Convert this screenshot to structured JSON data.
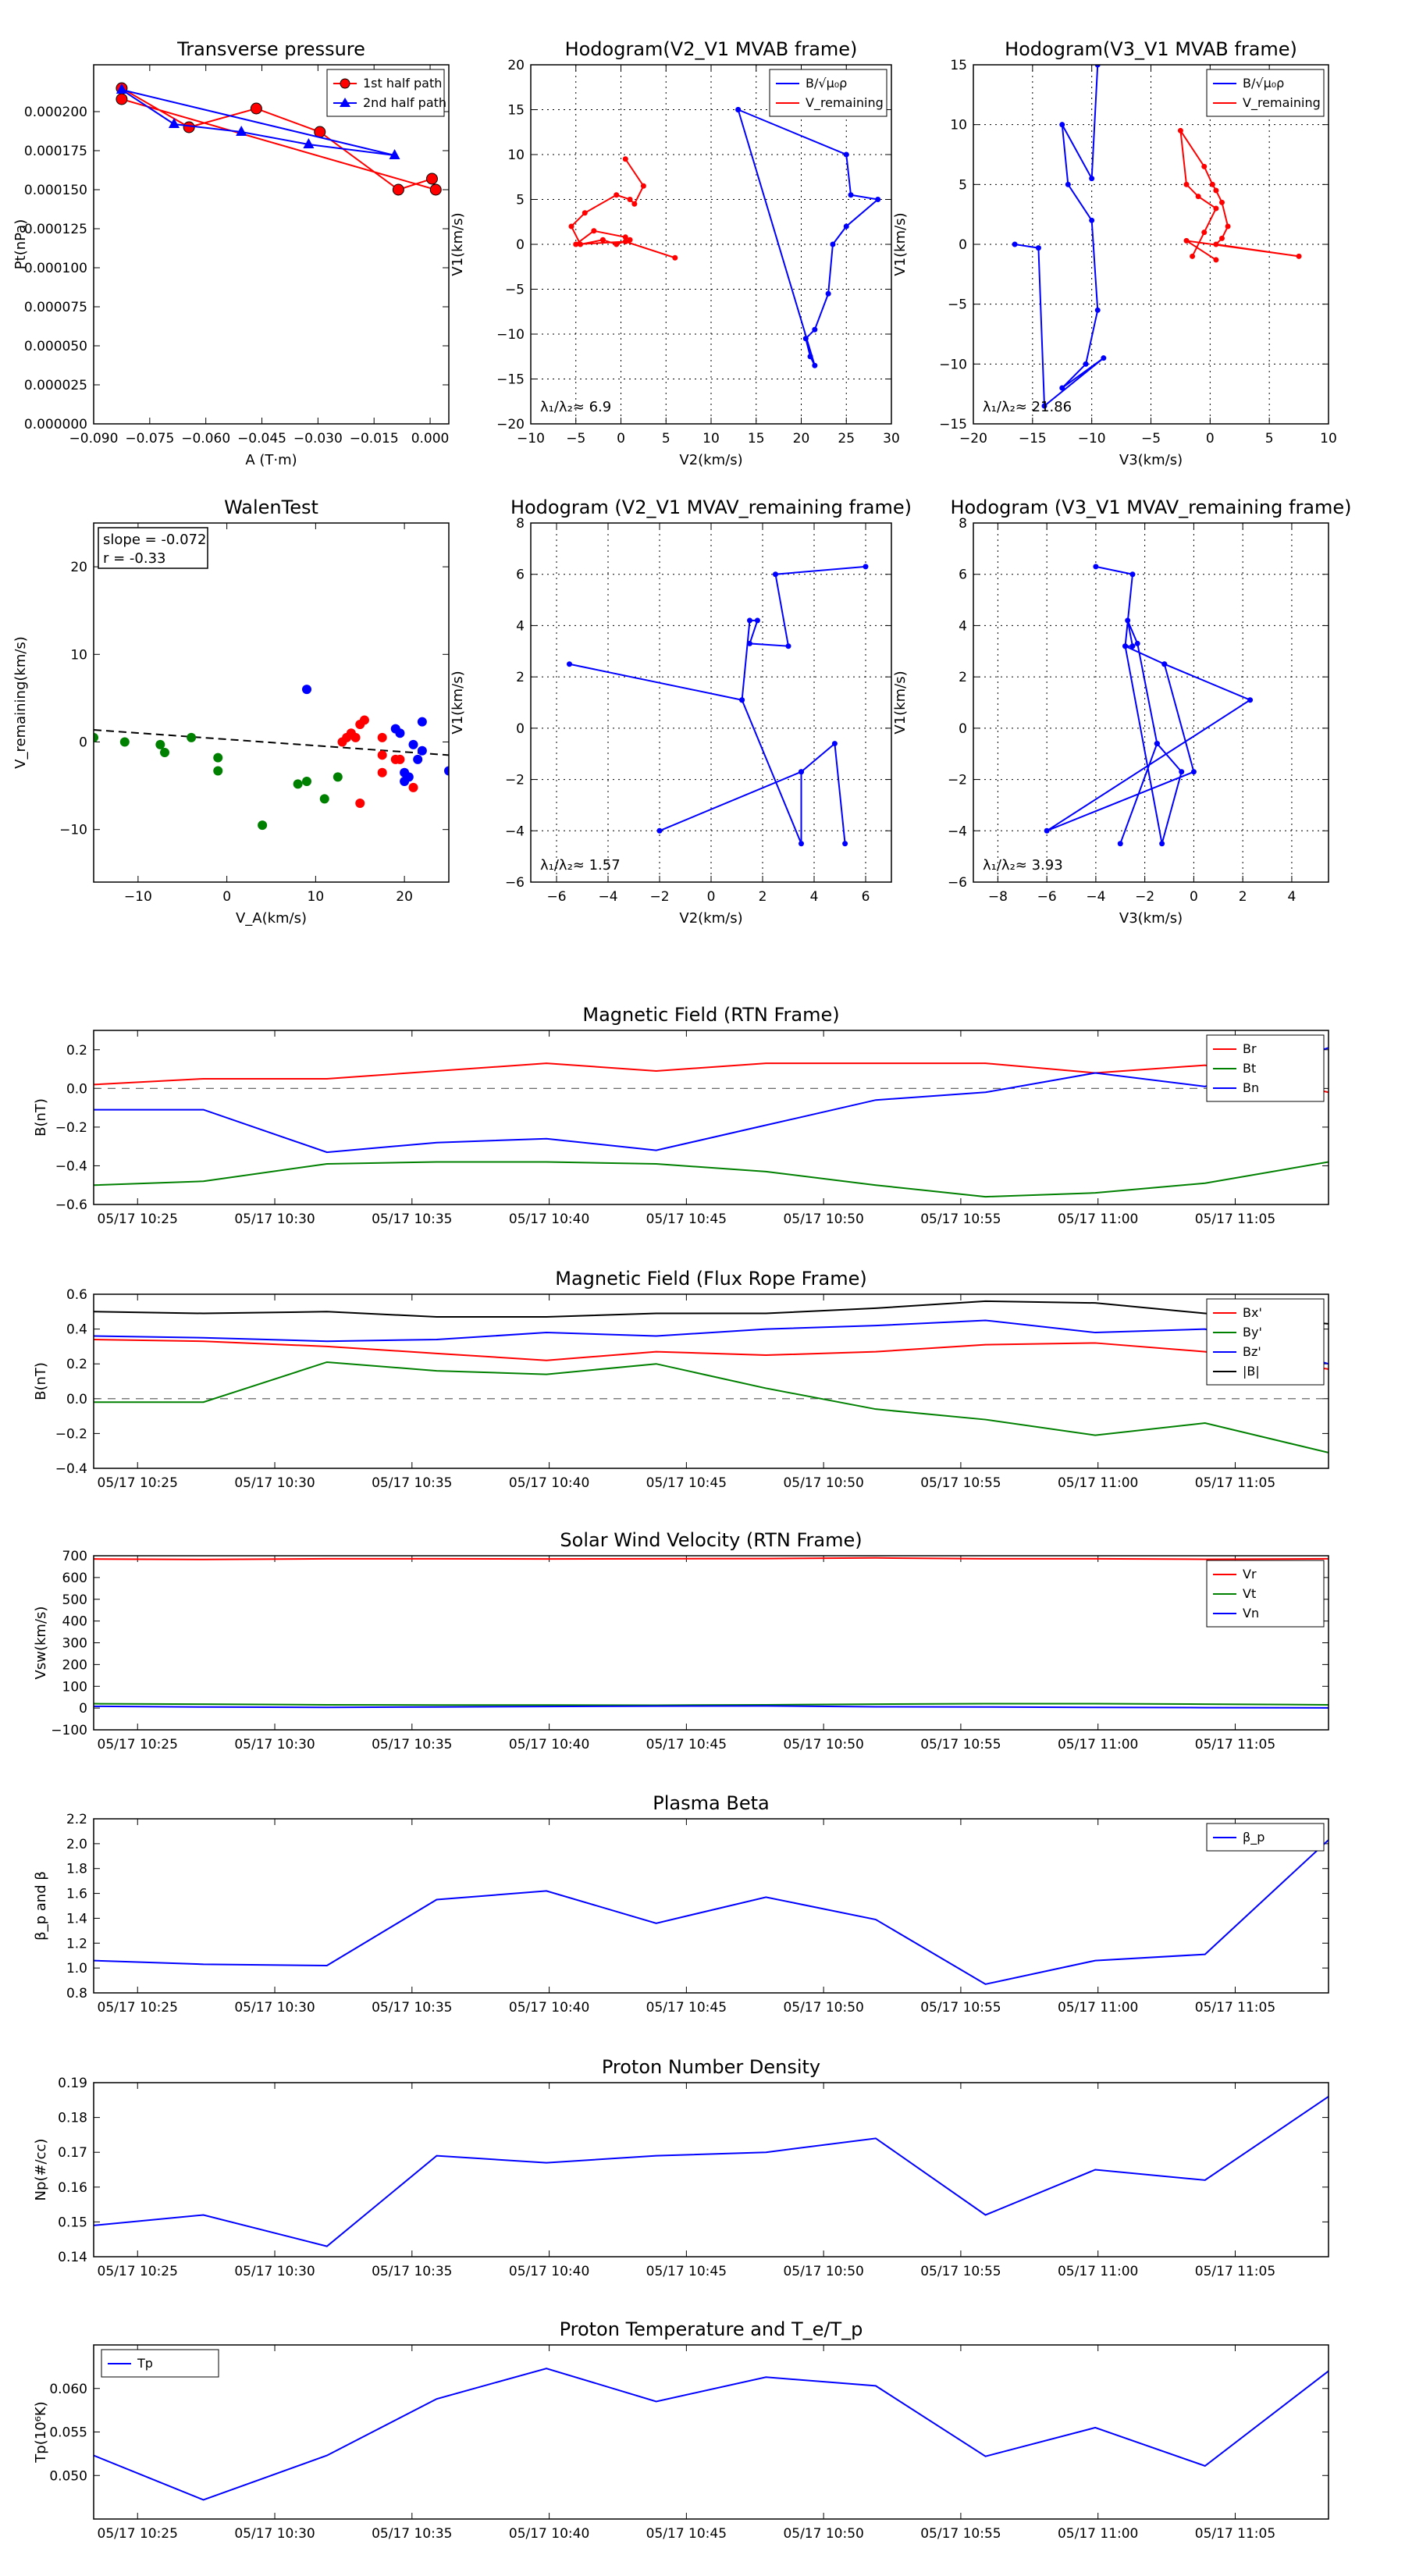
{
  "chart_data": [
    {
      "id": "tp",
      "type": "scatter",
      "title": "Transverse pressure",
      "xlabel": "A (T·m)",
      "ylabel": "Pt(nPa)",
      "xlim": [
        -0.09,
        0.005
      ],
      "ylim": [
        0,
        0.00023
      ],
      "xticks": [
        -0.09,
        -0.075,
        -0.06,
        -0.045,
        -0.03,
        -0.015,
        0
      ],
      "xtick_labels": [
        "−0.090",
        "−0.075",
        "−0.060",
        "−0.045",
        "−0.030",
        "−0.015",
        "0.000"
      ],
      "yticks": [
        0,
        2.5e-05,
        5e-05,
        7.5e-05,
        0.0001,
        0.000125,
        0.00015,
        0.000175,
        0.0002
      ],
      "ytick_labels": [
        "0.000000",
        "0.000025",
        "0.000050",
        "0.000075",
        "0.000100",
        "0.000125",
        "0.000150",
        "0.000175",
        "0.000200"
      ],
      "grid": false,
      "legend": "top-right",
      "series": [
        {
          "name": "1st half path",
          "color": "#ff0000",
          "marker": "circle",
          "x": [
            -0.0825,
            -0.0645,
            -0.0465,
            -0.0295,
            -0.0085,
            0.0005,
            0.0015,
            -0.0825
          ],
          "y": [
            0.000215,
            0.00019,
            0.000202,
            0.000187,
            0.00015,
            0.000157,
            0.00015,
            0.000208
          ]
        },
        {
          "name": "2nd half path",
          "color": "#0000ff",
          "marker": "triangle",
          "x": [
            -0.0825,
            -0.0685,
            -0.0505,
            -0.0325,
            -0.0095,
            -0.0825
          ],
          "y": [
            0.000214,
            0.000192,
            0.000187,
            0.000179,
            0.000172,
            0.000214
          ]
        }
      ]
    },
    {
      "id": "h1",
      "type": "line",
      "title": "Hodogram(V2_V1 MVAB frame)",
      "xlabel": "V2(km/s)",
      "ylabel": "V1(km/s)",
      "xlim": [
        -10,
        30
      ],
      "ylim": [
        -20,
        20
      ],
      "xticks": [
        -10,
        -5,
        0,
        5,
        10,
        15,
        20,
        25,
        30
      ],
      "yticks": [
        -20,
        -15,
        -10,
        -5,
        0,
        5,
        10,
        15,
        20
      ],
      "grid": true,
      "legend": "top-right",
      "annotation": "λ₁/λ₂≈ 6.9",
      "series": [
        {
          "name": "B/√μ₀ρ",
          "color": "#0000ff",
          "x": [
            13,
            25,
            25.5,
            28.5,
            25,
            23.5,
            23,
            21.5,
            20.5,
            21,
            21.5,
            13
          ],
          "y": [
            15,
            10,
            5.5,
            5,
            2,
            0,
            -5.5,
            -9.5,
            -10.5,
            -12.5,
            -13.5,
            15
          ]
        },
        {
          "name": "V_remaining",
          "color": "#ff0000",
          "x": [
            0.5,
            2.5,
            1.5,
            1,
            -0.5,
            -4,
            -5.5,
            -4.5,
            -2,
            -0.5,
            1,
            0.5,
            -3,
            -5,
            0.5,
            6
          ],
          "y": [
            9.5,
            6.5,
            4.5,
            5,
            5.5,
            3.5,
            2,
            0,
            0.5,
            0,
            0.5,
            0.8,
            1.5,
            0,
            0.3,
            -1.5
          ]
        }
      ]
    },
    {
      "id": "h2",
      "type": "line",
      "title": "Hodogram(V3_V1 MVAB frame)",
      "xlabel": "V3(km/s)",
      "ylabel": "V1(km/s)",
      "xlim": [
        -20,
        10
      ],
      "ylim": [
        -15,
        15
      ],
      "xticks": [
        -20,
        -15,
        -10,
        -5,
        0,
        5,
        10
      ],
      "yticks": [
        -15,
        -10,
        -5,
        0,
        5,
        10,
        15
      ],
      "grid": true,
      "legend": "top-right",
      "annotation": "λ₁/λ₂≈ 21.86",
      "series": [
        {
          "name": "B/√μ₀ρ",
          "color": "#0000ff",
          "x": [
            -9.5,
            -10,
            -12.5,
            -12,
            -10,
            -9.5,
            -10.5,
            -12.5,
            -9,
            -14,
            -14.5,
            -16.5
          ],
          "y": [
            15,
            5.5,
            10,
            5,
            2,
            -5.5,
            -10,
            -12,
            -9.5,
            -13.5,
            -0.3,
            0
          ]
        },
        {
          "name": "V_remaining",
          "color": "#ff0000",
          "x": [
            -1.5,
            -0.5,
            0.5,
            -1,
            -2,
            -2.5,
            -0.5,
            0.2,
            0.5,
            1,
            1.5,
            1,
            0.5,
            7.5,
            -2,
            0.5
          ],
          "y": [
            -1,
            1,
            3,
            4,
            5,
            9.5,
            6.5,
            5,
            4.5,
            3.5,
            1.5,
            0.5,
            0,
            -1,
            0.3,
            -1.3
          ]
        }
      ]
    },
    {
      "id": "walen",
      "type": "scatter",
      "title": "WalenTest",
      "xlabel": "V_A(km/s)",
      "ylabel": "V_remaining(km/s)",
      "xlim": [
        -15,
        25
      ],
      "ylim": [
        -16,
        25
      ],
      "xticks": [
        -10,
        0,
        10,
        20
      ],
      "yticks": [
        -10,
        0,
        10,
        20
      ],
      "grid": false,
      "annotation": [
        "slope = -0.072",
        "r = -0.33"
      ],
      "fit_line": {
        "slope": -0.072,
        "intercept": 0.3,
        "color": "#000000",
        "style": "dashed"
      },
      "series": [
        {
          "name": "green",
          "color": "#008000",
          "x": [
            -15,
            -11.5,
            -7.5,
            -7,
            -4,
            -1,
            -1,
            4,
            8,
            9,
            11,
            12.5
          ],
          "y": [
            0.5,
            0,
            -0.3,
            -1.2,
            0.5,
            -1.8,
            -3.3,
            -9.5,
            -4.8,
            -4.5,
            -6.5,
            -4
          ]
        },
        {
          "name": "red",
          "color": "#ff0000",
          "x": [
            13,
            13.5,
            14,
            14.5,
            15,
            15.5,
            17.5,
            17.5,
            17.5,
            19,
            19.5,
            21,
            15
          ],
          "y": [
            0,
            0.5,
            1,
            0.5,
            2,
            2.5,
            0.5,
            -1.5,
            -3.5,
            -2,
            -2,
            -5.2,
            -7
          ]
        },
        {
          "name": "blue",
          "color": "#0000ff",
          "x": [
            9,
            19,
            19.5,
            20,
            21,
            20,
            20.5,
            22,
            21.5,
            22,
            25
          ],
          "y": [
            6,
            1.5,
            1,
            -3.5,
            -0.3,
            -4.5,
            -4,
            -1,
            -2,
            2.3,
            -3.3
          ]
        }
      ]
    },
    {
      "id": "h3",
      "type": "line",
      "title": "Hodogram (V2_V1 MVAV_remaining frame)",
      "xlabel": "V2(km/s)",
      "ylabel": "V1(km/s)",
      "xlim": [
        -7,
        7
      ],
      "ylim": [
        -6,
        8
      ],
      "xticks": [
        -6,
        -4,
        -2,
        0,
        2,
        4,
        6
      ],
      "yticks": [
        -6,
        -4,
        -2,
        0,
        2,
        4,
        6,
        8
      ],
      "grid": true,
      "annotation": "λ₁/λ₂≈ 1.57",
      "series": [
        {
          "name": "V",
          "color": "#0000ff",
          "x": [
            6,
            2.5,
            3,
            1.5,
            1.8,
            1.5,
            1.2,
            -5.5,
            1.2,
            3.5,
            3.5,
            -2,
            3.5,
            4.8,
            5.2
          ],
          "y": [
            6.3,
            6,
            3.2,
            3.3,
            4.2,
            4.2,
            1.1,
            2.5,
            1.1,
            -4.5,
            -1.7,
            -4,
            -1.7,
            -0.6,
            -4.5
          ]
        }
      ]
    },
    {
      "id": "h4",
      "type": "line",
      "title": "Hodogram (V3_V1 MVAV_remaining frame)",
      "xlabel": "V3(km/s)",
      "ylabel": "V1(km/s)",
      "xlim": [
        -9,
        5.5
      ],
      "ylim": [
        -6,
        8
      ],
      "xticks": [
        -8,
        -6,
        -4,
        -2,
        0,
        2,
        4
      ],
      "yticks": [
        -6,
        -4,
        -2,
        0,
        2,
        4,
        6,
        8
      ],
      "grid": true,
      "annotation": "λ₁/λ₂≈ 3.93",
      "series": [
        {
          "name": "V",
          "color": "#0000ff",
          "x": [
            -4,
            -2.5,
            -2.8,
            -2.5,
            -2.7,
            -2.3,
            -1.5,
            -3,
            -1.5,
            -1.5,
            -0.5,
            -1.3,
            -2.8,
            -1.2,
            0,
            -6,
            2.3,
            -1.2
          ],
          "y": [
            6.3,
            6,
            3.2,
            3.2,
            4.2,
            3.3,
            -0.6,
            -4.5,
            -0.6,
            -0.6,
            -1.7,
            -4.5,
            3.2,
            2.5,
            -1.7,
            -4,
            1.1,
            2.5
          ]
        }
      ]
    },
    {
      "id": "ts1",
      "type": "line",
      "title": "Magnetic Field (RTN Frame)",
      "ylabel": "B(nT)",
      "ylim": [
        -0.6,
        0.3
      ],
      "yticks": [
        -0.6,
        -0.4,
        -0.2,
        0,
        0.2
      ],
      "ytick_labels": [
        "−0.6",
        "−0.4",
        "−0.2",
        "0.0",
        "0.2"
      ],
      "zero_line": true,
      "legend": "top-right",
      "series": [
        {
          "name": "Br",
          "color": "#ff0000",
          "values": [
            0.02,
            0.05,
            0.05,
            0.09,
            0.13,
            0.09,
            0.13,
            0.13,
            0.13,
            0.08,
            0.12,
            -0.02
          ]
        },
        {
          "name": "Bt",
          "color": "#008000",
          "values": [
            -0.5,
            -0.48,
            -0.39,
            -0.38,
            -0.38,
            -0.39,
            -0.43,
            -0.5,
            -0.56,
            -0.54,
            -0.49,
            -0.38
          ]
        },
        {
          "name": "Bn",
          "color": "#0000ff",
          "values": [
            -0.11,
            -0.11,
            -0.33,
            -0.28,
            -0.26,
            -0.32,
            -0.19,
            -0.06,
            -0.02,
            0.08,
            0.01,
            0.21
          ]
        }
      ]
    },
    {
      "id": "ts2",
      "type": "line",
      "title": "Magnetic Field (Flux Rope Frame)",
      "ylabel": "B(nT)",
      "ylim": [
        -0.4,
        0.6
      ],
      "yticks": [
        -0.4,
        -0.2,
        0,
        0.2,
        0.4,
        0.6
      ],
      "ytick_labels": [
        "−0.4",
        "−0.2",
        "0.0",
        "0.2",
        "0.4",
        "0.6"
      ],
      "zero_line": true,
      "legend": "top-right",
      "series": [
        {
          "name": "Bx'",
          "color": "#ff0000",
          "values": [
            0.34,
            0.33,
            0.3,
            0.26,
            0.22,
            0.27,
            0.25,
            0.27,
            0.31,
            0.32,
            0.27,
            0.17
          ]
        },
        {
          "name": "By'",
          "color": "#008000",
          "values": [
            -0.02,
            -0.02,
            0.21,
            0.16,
            0.14,
            0.2,
            0.06,
            -0.06,
            -0.12,
            -0.21,
            -0.14,
            -0.31
          ]
        },
        {
          "name": "Bz'",
          "color": "#0000ff",
          "values": [
            0.36,
            0.35,
            0.33,
            0.34,
            0.38,
            0.36,
            0.4,
            0.42,
            0.45,
            0.38,
            0.4,
            0.2
          ]
        },
        {
          "name": "|B|",
          "color": "#000000",
          "values": [
            0.5,
            0.49,
            0.5,
            0.47,
            0.47,
            0.49,
            0.49,
            0.52,
            0.56,
            0.55,
            0.49,
            0.43
          ]
        }
      ]
    },
    {
      "id": "ts3",
      "type": "line",
      "title": "Solar Wind Velocity (RTN Frame)",
      "ylabel": "Vsw(km/s)",
      "ylim": [
        -100,
        700
      ],
      "yticks": [
        -100,
        0,
        100,
        200,
        300,
        400,
        500,
        600,
        700
      ],
      "ytick_labels": [
        "−100",
        "0",
        "100",
        "200",
        "300",
        "400",
        "500",
        "600",
        "700"
      ],
      "zero_line": false,
      "legend": "top-right",
      "series": [
        {
          "name": "Vr",
          "color": "#ff0000",
          "values": [
            685,
            683,
            686,
            686,
            685,
            686,
            687,
            690,
            686,
            686,
            684,
            686
          ]
        },
        {
          "name": "Vt",
          "color": "#008000",
          "values": [
            20,
            18,
            15,
            14,
            14,
            13,
            15,
            18,
            20,
            20,
            18,
            15
          ]
        },
        {
          "name": "Vn",
          "color": "#0000ff",
          "values": [
            8,
            5,
            3,
            5,
            7,
            9,
            10,
            6,
            5,
            3,
            2,
            1
          ]
        }
      ]
    },
    {
      "id": "ts4",
      "type": "line",
      "title": "Plasma Beta",
      "ylabel": "β_p and β",
      "ylim": [
        0.8,
        2.2
      ],
      "yticks": [
        0.8,
        1.0,
        1.2,
        1.4,
        1.6,
        1.8,
        2.0,
        2.2
      ],
      "ytick_labels": [
        "0.8",
        "1.0",
        "1.2",
        "1.4",
        "1.6",
        "1.8",
        "2.0",
        "2.2"
      ],
      "zero_line": false,
      "legend": "top-right",
      "series": [
        {
          "name": "β_p",
          "color": "#0000ff",
          "values": [
            1.06,
            1.03,
            1.02,
            1.55,
            1.62,
            1.36,
            1.57,
            1.39,
            0.87,
            1.06,
            1.11,
            2.03
          ]
        }
      ]
    },
    {
      "id": "ts5",
      "type": "line",
      "title": "Proton Number Density",
      "ylabel": "Np(#/cc)",
      "ylim": [
        0.14,
        0.19
      ],
      "yticks": [
        0.14,
        0.15,
        0.16,
        0.17,
        0.18,
        0.19
      ],
      "ytick_labels": [
        "0.14",
        "0.15",
        "0.16",
        "0.17",
        "0.18",
        "0.19"
      ],
      "zero_line": false,
      "series": [
        {
          "name": "Np",
          "color": "#0000ff",
          "values": [
            0.149,
            0.152,
            0.143,
            0.169,
            0.167,
            0.169,
            0.17,
            0.174,
            0.152,
            0.165,
            0.162,
            0.186
          ]
        }
      ]
    },
    {
      "id": "ts6",
      "type": "line",
      "title": "Proton Temperature and T_e/T_p",
      "ylabel": "Tp(10⁶K)",
      "ylim": [
        0.045,
        0.065
      ],
      "yticks": [
        0.05,
        0.055,
        0.06
      ],
      "ytick_labels": [
        "0.050",
        "0.055",
        "0.060"
      ],
      "zero_line": false,
      "legend": "top-left",
      "series": [
        {
          "name": "Tp",
          "color": "#0000ff",
          "values": [
            0.0523,
            0.0472,
            0.0523,
            0.0588,
            0.0623,
            0.0585,
            0.0613,
            0.0603,
            0.0522,
            0.0555,
            0.0511,
            0.062
          ]
        }
      ]
    }
  ],
  "time_axis": {
    "xlim": [
      0,
      45
    ],
    "x": [
      0,
      4,
      8.5,
      12.5,
      16.5,
      20.5,
      24.5,
      28.5,
      32.5,
      36.5,
      40.5,
      45
    ],
    "ticks": [
      1.6,
      6.6,
      11.6,
      16.6,
      21.6,
      26.6,
      31.6,
      36.6,
      41.6
    ],
    "tick_labels": [
      "05/17 10:25",
      "05/17 10:30",
      "05/17 10:35",
      "05/17 10:40",
      "05/17 10:45",
      "05/17 10:50",
      "05/17 10:55",
      "05/17 11:00",
      "05/17 11:05"
    ]
  }
}
